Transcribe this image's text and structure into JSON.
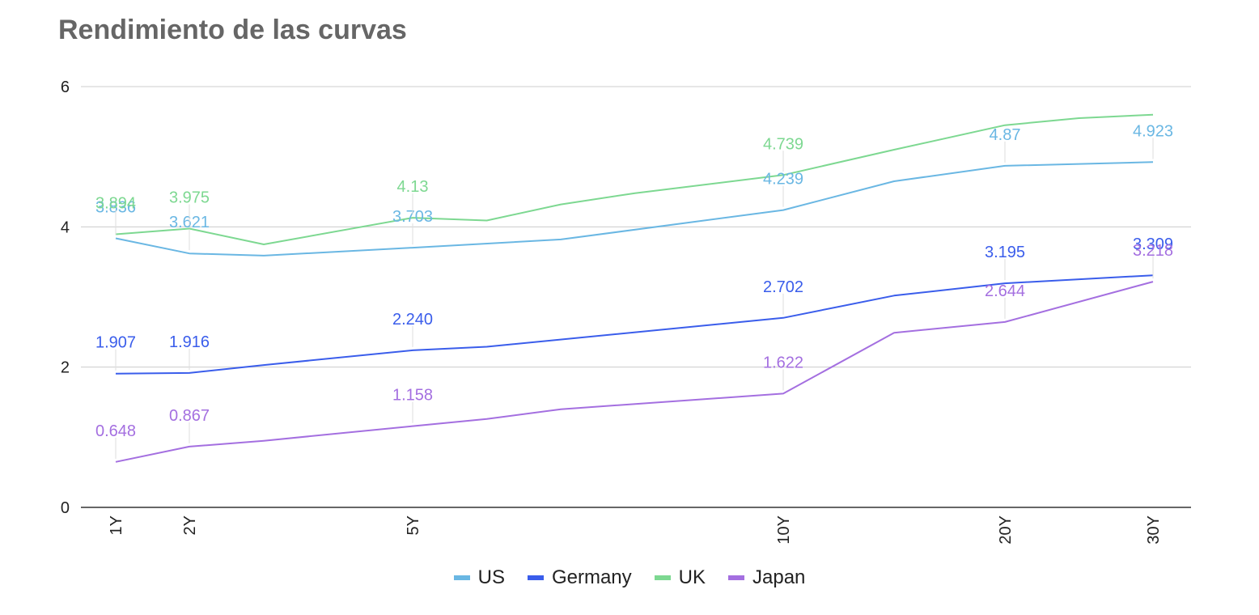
{
  "chart_data": {
    "type": "line",
    "title": "Rendimiento de las curvas",
    "categories": [
      "1Y",
      "2Y",
      "5Y",
      "10Y",
      "20Y",
      "30Y"
    ],
    "ylim": [
      0,
      6
    ],
    "yticks": [
      0,
      2,
      4,
      6
    ],
    "grid": true,
    "legend_position": "bottom",
    "series": [
      {
        "name": "US",
        "color": "#6AB7E3",
        "points": [
          [
            1,
            3.836
          ],
          [
            2,
            3.621
          ],
          [
            3,
            3.59
          ],
          [
            5,
            3.703
          ],
          [
            7,
            3.82
          ],
          [
            10,
            4.239
          ],
          [
            15,
            4.65
          ],
          [
            20,
            4.87
          ],
          [
            30,
            4.923
          ]
        ],
        "labels": [
          [
            1,
            "3.836"
          ],
          [
            2,
            "3.621"
          ],
          [
            5,
            "3.703"
          ],
          [
            10,
            "4.239"
          ],
          [
            20,
            "4.87"
          ],
          [
            30,
            "4.923"
          ]
        ]
      },
      {
        "name": "Germany",
        "color": "#3A5DEB",
        "points": [
          [
            1,
            1.907
          ],
          [
            2,
            1.916
          ],
          [
            3,
            2.03
          ],
          [
            5,
            2.24
          ],
          [
            6,
            2.29
          ],
          [
            10,
            2.702
          ],
          [
            15,
            3.02
          ],
          [
            20,
            3.195
          ],
          [
            30,
            3.309
          ]
        ],
        "labels": [
          [
            1,
            "1.907"
          ],
          [
            2,
            "1.916"
          ],
          [
            5,
            "2.240"
          ],
          [
            10,
            "2.702"
          ],
          [
            20,
            "3.195"
          ],
          [
            30,
            "3.309"
          ]
        ]
      },
      {
        "name": "UK",
        "color": "#7DD891",
        "points": [
          [
            1,
            3.894
          ],
          [
            2,
            3.975
          ],
          [
            3,
            3.75
          ],
          [
            5,
            4.13
          ],
          [
            6,
            4.09
          ],
          [
            7,
            4.32
          ],
          [
            8,
            4.48
          ],
          [
            10,
            4.739
          ],
          [
            15,
            5.1
          ],
          [
            20,
            5.45
          ],
          [
            25,
            5.55
          ],
          [
            30,
            5.6
          ]
        ],
        "labels": [
          [
            1,
            "3.894"
          ],
          [
            2,
            "3.975"
          ],
          [
            5,
            "4.13"
          ],
          [
            10,
            "4.739"
          ]
        ]
      },
      {
        "name": "Japan",
        "color": "#A46FE0",
        "points": [
          [
            1,
            0.648
          ],
          [
            2,
            0.867
          ],
          [
            3,
            0.95
          ],
          [
            5,
            1.158
          ],
          [
            6,
            1.26
          ],
          [
            7,
            1.4
          ],
          [
            10,
            1.622
          ],
          [
            15,
            2.49
          ],
          [
            20,
            2.644
          ],
          [
            30,
            3.218
          ]
        ],
        "labels": [
          [
            1,
            "0.648"
          ],
          [
            2,
            "0.867"
          ],
          [
            5,
            "1.158"
          ],
          [
            10,
            "1.622"
          ],
          [
            20,
            "2.644"
          ],
          [
            30,
            "3.218"
          ]
        ]
      }
    ]
  }
}
